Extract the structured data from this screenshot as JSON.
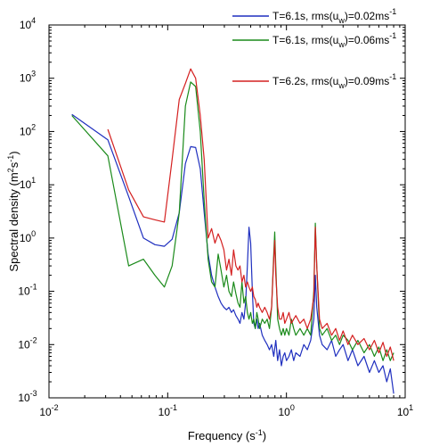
{
  "chart_data": {
    "type": "line",
    "xlabel": "Frequency (s",
    "xlabel_sup": "-1",
    "xlabel_tail": ")",
    "ylabel": "Spectral density (m",
    "ylabel_sup1": "2",
    "ylabel_mid": "s",
    "ylabel_sup2": "-1",
    "ylabel_tail": ")",
    "x_scale": "log",
    "y_scale": "log",
    "xlim": [
      0.01,
      10
    ],
    "ylim": [
      0.001,
      10000
    ],
    "x_ticks": [
      {
        "value": 0.01,
        "base": "10",
        "exp": "-2"
      },
      {
        "value": 0.1,
        "base": "10",
        "exp": "-1"
      },
      {
        "value": 1,
        "base": "10",
        "exp": "0"
      },
      {
        "value": 10,
        "base": "10",
        "exp": "1"
      }
    ],
    "y_ticks": [
      {
        "value": 0.001,
        "base": "10",
        "exp": "-3"
      },
      {
        "value": 0.01,
        "base": "10",
        "exp": "-2"
      },
      {
        "value": 0.1,
        "base": "10",
        "exp": "-1"
      },
      {
        "value": 1,
        "base": "10",
        "exp": "0"
      },
      {
        "value": 10,
        "base": "10",
        "exp": "1"
      },
      {
        "value": 100,
        "base": "10",
        "exp": "2"
      },
      {
        "value": 1000,
        "base": "10",
        "exp": "3"
      },
      {
        "value": 10000,
        "base": "10",
        "exp": "4"
      }
    ],
    "grid": false,
    "legend_position": "top-right",
    "series": [
      {
        "legend_main": "T=6.1s, rms(u",
        "legend_sub": "w",
        "legend_mid": ")=0.02ms",
        "legend_sup": "-1",
        "color": "#1f2fbf",
        "points": [
          [
            0.0156,
            210
          ],
          [
            0.0313,
            70
          ],
          [
            0.0469,
            6
          ],
          [
            0.0625,
            1.0
          ],
          [
            0.0781,
            0.75
          ],
          [
            0.0938,
            0.7
          ],
          [
            0.109,
            0.95
          ],
          [
            0.125,
            3
          ],
          [
            0.141,
            25
          ],
          [
            0.156,
            52
          ],
          [
            0.172,
            50
          ],
          [
            0.188,
            20
          ],
          [
            0.203,
            3
          ],
          [
            0.219,
            0.5
          ],
          [
            0.234,
            0.2
          ],
          [
            0.25,
            0.12
          ],
          [
            0.266,
            0.08
          ],
          [
            0.281,
            0.06
          ],
          [
            0.297,
            0.05
          ],
          [
            0.313,
            0.045
          ],
          [
            0.328,
            0.05
          ],
          [
            0.344,
            0.04
          ],
          [
            0.359,
            0.045
          ],
          [
            0.375,
            0.035
          ],
          [
            0.391,
            0.03
          ],
          [
            0.406,
            0.025
          ],
          [
            0.422,
            0.04
          ],
          [
            0.438,
            0.03
          ],
          [
            0.453,
            0.06
          ],
          [
            0.469,
            0.3
          ],
          [
            0.484,
            1.6
          ],
          [
            0.5,
            0.8
          ],
          [
            0.516,
            0.1
          ],
          [
            0.531,
            0.025
          ],
          [
            0.547,
            0.02
          ],
          [
            0.563,
            0.03
          ],
          [
            0.578,
            0.02
          ],
          [
            0.594,
            0.025
          ],
          [
            0.625,
            0.015
          ],
          [
            0.656,
            0.012
          ],
          [
            0.688,
            0.01
          ],
          [
            0.719,
            0.008
          ],
          [
            0.75,
            0.01
          ],
          [
            0.781,
            0.006
          ],
          [
            0.813,
            0.012
          ],
          [
            0.844,
            0.005
          ],
          [
            0.875,
            0.008
          ],
          [
            0.906,
            0.004
          ],
          [
            0.938,
            0.006
          ],
          [
            0.969,
            0.007
          ],
          [
            1.0,
            0.005
          ],
          [
            1.05,
            0.006
          ],
          [
            1.1,
            0.008
          ],
          [
            1.15,
            0.005
          ],
          [
            1.2,
            0.007
          ],
          [
            1.3,
            0.006
          ],
          [
            1.4,
            0.01
          ],
          [
            1.5,
            0.008
          ],
          [
            1.6,
            0.012
          ],
          [
            1.7,
            0.03
          ],
          [
            1.75,
            0.2
          ],
          [
            1.8,
            0.05
          ],
          [
            1.9,
            0.015
          ],
          [
            2.0,
            0.01
          ],
          [
            2.2,
            0.008
          ],
          [
            2.4,
            0.012
          ],
          [
            2.6,
            0.006
          ],
          [
            2.8,
            0.008
          ],
          [
            3.0,
            0.01
          ],
          [
            3.3,
            0.005
          ],
          [
            3.6,
            0.008
          ],
          [
            4.0,
            0.004
          ],
          [
            4.5,
            0.006
          ],
          [
            5.0,
            0.003
          ],
          [
            5.5,
            0.005
          ],
          [
            6.0,
            0.003
          ],
          [
            6.5,
            0.004
          ],
          [
            7.0,
            0.002
          ],
          [
            7.5,
            0.0035
          ],
          [
            8.0,
            0.0012
          ]
        ]
      },
      {
        "legend_main": "T=6.1s, rms(u",
        "legend_sub": "w",
        "legend_mid": ")=0.06ms",
        "legend_sup": "-1",
        "color": "#1a8a1a",
        "points": [
          [
            0.0156,
            200
          ],
          [
            0.0313,
            35
          ],
          [
            0.0469,
            0.3
          ],
          [
            0.0625,
            0.4
          ],
          [
            0.0781,
            0.2
          ],
          [
            0.0938,
            0.12
          ],
          [
            0.109,
            0.3
          ],
          [
            0.125,
            3
          ],
          [
            0.141,
            300
          ],
          [
            0.156,
            850
          ],
          [
            0.172,
            700
          ],
          [
            0.188,
            100
          ],
          [
            0.203,
            5
          ],
          [
            0.219,
            0.4
          ],
          [
            0.234,
            0.15
          ],
          [
            0.25,
            0.12
          ],
          [
            0.266,
            0.5
          ],
          [
            0.281,
            0.25
          ],
          [
            0.297,
            0.12
          ],
          [
            0.313,
            0.2
          ],
          [
            0.328,
            0.1
          ],
          [
            0.344,
            0.08
          ],
          [
            0.359,
            0.15
          ],
          [
            0.375,
            0.09
          ],
          [
            0.391,
            0.06
          ],
          [
            0.406,
            0.05
          ],
          [
            0.422,
            0.15
          ],
          [
            0.438,
            0.06
          ],
          [
            0.453,
            0.08
          ],
          [
            0.469,
            0.04
          ],
          [
            0.484,
            0.03
          ],
          [
            0.5,
            0.04
          ],
          [
            0.516,
            0.025
          ],
          [
            0.531,
            0.03
          ],
          [
            0.547,
            0.02
          ],
          [
            0.563,
            0.04
          ],
          [
            0.578,
            0.03
          ],
          [
            0.594,
            0.02
          ],
          [
            0.625,
            0.03
          ],
          [
            0.656,
            0.025
          ],
          [
            0.688,
            0.03
          ],
          [
            0.719,
            0.02
          ],
          [
            0.75,
            0.05
          ],
          [
            0.781,
            0.5
          ],
          [
            0.797,
            1.3
          ],
          [
            0.813,
            0.3
          ],
          [
            0.844,
            0.03
          ],
          [
            0.875,
            0.02
          ],
          [
            0.906,
            0.015
          ],
          [
            0.938,
            0.02
          ],
          [
            0.969,
            0.015
          ],
          [
            1.0,
            0.02
          ],
          [
            1.05,
            0.015
          ],
          [
            1.1,
            0.03
          ],
          [
            1.15,
            0.02
          ],
          [
            1.2,
            0.015
          ],
          [
            1.3,
            0.02
          ],
          [
            1.4,
            0.015
          ],
          [
            1.5,
            0.02
          ],
          [
            1.6,
            0.015
          ],
          [
            1.7,
            0.1
          ],
          [
            1.75,
            1.9
          ],
          [
            1.8,
            0.3
          ],
          [
            1.9,
            0.02
          ],
          [
            2.0,
            0.015
          ],
          [
            2.2,
            0.02
          ],
          [
            2.4,
            0.012
          ],
          [
            2.6,
            0.015
          ],
          [
            2.8,
            0.01
          ],
          [
            3.0,
            0.015
          ],
          [
            3.3,
            0.012
          ],
          [
            3.6,
            0.008
          ],
          [
            4.0,
            0.012
          ],
          [
            4.5,
            0.007
          ],
          [
            5.0,
            0.01
          ],
          [
            5.5,
            0.006
          ],
          [
            6.0,
            0.009
          ],
          [
            6.5,
            0.005
          ],
          [
            7.0,
            0.008
          ],
          [
            7.5,
            0.005
          ],
          [
            8.0,
            0.007
          ]
        ]
      },
      {
        "legend_main": "T=6.2s, rms(u",
        "legend_sub": "w",
        "legend_mid": ")=0.09ms",
        "legend_sup": "-1",
        "color": "#d42020",
        "points": [
          [
            0.0313,
            110
          ],
          [
            0.0469,
            8
          ],
          [
            0.0625,
            2.5
          ],
          [
            0.0781,
            2.2
          ],
          [
            0.0938,
            2.0
          ],
          [
            0.109,
            30
          ],
          [
            0.125,
            400
          ],
          [
            0.141,
            800
          ],
          [
            0.156,
            1500
          ],
          [
            0.172,
            1000
          ],
          [
            0.188,
            200
          ],
          [
            0.203,
            30
          ],
          [
            0.219,
            1.0
          ],
          [
            0.234,
            1.5
          ],
          [
            0.25,
            0.8
          ],
          [
            0.266,
            1.2
          ],
          [
            0.281,
            0.9
          ],
          [
            0.297,
            0.6
          ],
          [
            0.313,
            0.25
          ],
          [
            0.328,
            0.4
          ],
          [
            0.344,
            0.2
          ],
          [
            0.359,
            0.6
          ],
          [
            0.375,
            0.3
          ],
          [
            0.391,
            0.25
          ],
          [
            0.406,
            0.3
          ],
          [
            0.422,
            0.15
          ],
          [
            0.438,
            0.2
          ],
          [
            0.453,
            0.12
          ],
          [
            0.469,
            0.15
          ],
          [
            0.484,
            0.12
          ],
          [
            0.5,
            0.1
          ],
          [
            0.516,
            0.12
          ],
          [
            0.531,
            0.08
          ],
          [
            0.547,
            0.07
          ],
          [
            0.563,
            0.05
          ],
          [
            0.578,
            0.06
          ],
          [
            0.594,
            0.05
          ],
          [
            0.625,
            0.04
          ],
          [
            0.656,
            0.05
          ],
          [
            0.688,
            0.04
          ],
          [
            0.719,
            0.03
          ],
          [
            0.75,
            0.05
          ],
          [
            0.781,
            0.4
          ],
          [
            0.797,
            0.9
          ],
          [
            0.813,
            0.2
          ],
          [
            0.844,
            0.05
          ],
          [
            0.875,
            0.03
          ],
          [
            0.906,
            0.03
          ],
          [
            0.938,
            0.04
          ],
          [
            0.969,
            0.025
          ],
          [
            1.0,
            0.03
          ],
          [
            1.05,
            0.04
          ],
          [
            1.1,
            0.025
          ],
          [
            1.15,
            0.03
          ],
          [
            1.2,
            0.035
          ],
          [
            1.3,
            0.025
          ],
          [
            1.4,
            0.03
          ],
          [
            1.5,
            0.02
          ],
          [
            1.6,
            0.03
          ],
          [
            1.7,
            0.08
          ],
          [
            1.75,
            1.6
          ],
          [
            1.8,
            0.3
          ],
          [
            1.9,
            0.03
          ],
          [
            2.0,
            0.02
          ],
          [
            2.2,
            0.025
          ],
          [
            2.4,
            0.015
          ],
          [
            2.6,
            0.02
          ],
          [
            2.8,
            0.012
          ],
          [
            3.0,
            0.018
          ],
          [
            3.3,
            0.01
          ],
          [
            3.6,
            0.015
          ],
          [
            4.0,
            0.01
          ],
          [
            4.5,
            0.013
          ],
          [
            5.0,
            0.008
          ],
          [
            5.5,
            0.012
          ],
          [
            6.0,
            0.007
          ],
          [
            6.5,
            0.011
          ],
          [
            7.0,
            0.006
          ],
          [
            7.5,
            0.009
          ],
          [
            8.0,
            0.005
          ]
        ]
      }
    ]
  }
}
